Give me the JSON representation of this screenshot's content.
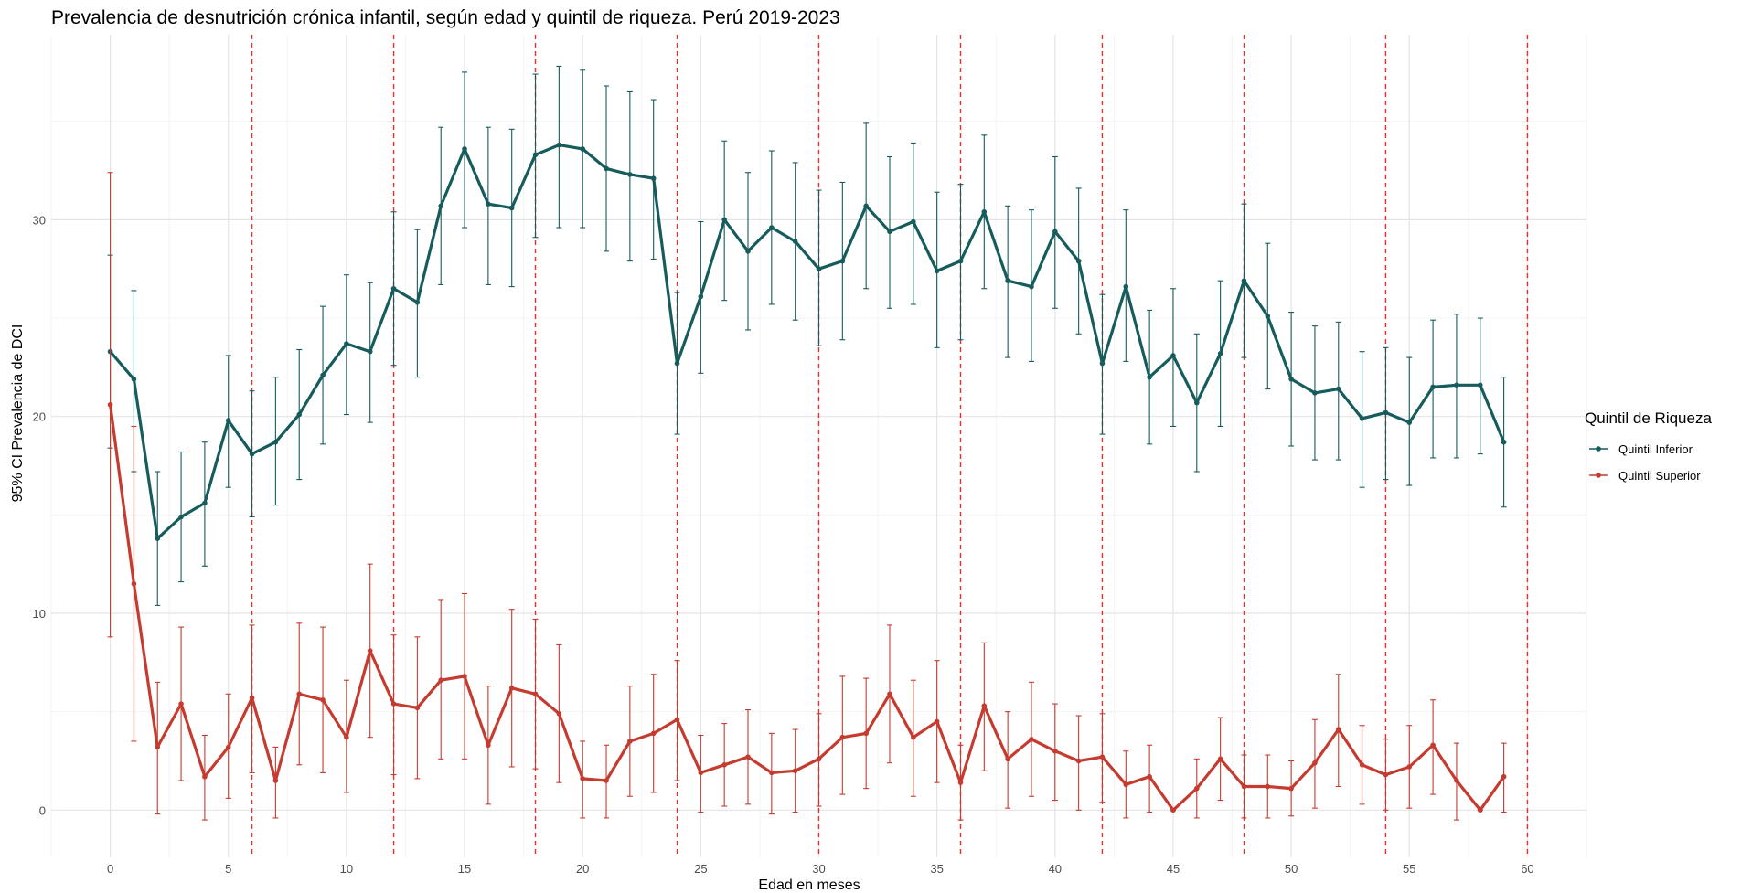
{
  "chart_data": {
    "type": "line",
    "title": "Prevalencia de desnutrición crónica infantil, según edad y quintil de riqueza. Perú 2019-2023",
    "xlabel": "Edad en meses",
    "ylabel": "95% CI Prevalencia de DCI",
    "xlim": [
      -2.5,
      62.5
    ],
    "ylim": [
      -2.4,
      39.4
    ],
    "x_ticks": [
      0,
      5,
      10,
      15,
      20,
      25,
      30,
      35,
      40,
      45,
      50,
      55,
      60
    ],
    "y_ticks": [
      0,
      10,
      20,
      30
    ],
    "grid": true,
    "reference_lines_x": [
      6,
      12,
      18,
      24,
      30,
      36,
      42,
      48,
      54,
      60
    ],
    "reference_line_color": "#e8302a",
    "legend": {
      "title": "Quintil de Riqueza",
      "position": "right"
    },
    "x": [
      0,
      1,
      2,
      3,
      4,
      5,
      6,
      7,
      8,
      9,
      10,
      11,
      12,
      13,
      14,
      15,
      16,
      17,
      18,
      19,
      20,
      21,
      22,
      23,
      24,
      25,
      26,
      27,
      28,
      29,
      30,
      31,
      32,
      33,
      34,
      35,
      36,
      37,
      38,
      39,
      40,
      41,
      42,
      43,
      44,
      45,
      46,
      47,
      48,
      49,
      50,
      51,
      52,
      53,
      54,
      55,
      56,
      57,
      58,
      59
    ],
    "series": [
      {
        "name": "Quintil Inferior",
        "color": "#175c5c",
        "values": [
          23.3,
          21.9,
          13.8,
          14.9,
          15.6,
          19.8,
          18.1,
          18.7,
          20.1,
          22.1,
          23.7,
          23.3,
          26.5,
          25.8,
          30.7,
          33.6,
          30.8,
          30.6,
          33.3,
          33.8,
          33.6,
          32.6,
          32.3,
          32.1,
          22.7,
          26.1,
          30.0,
          28.4,
          29.6,
          28.9,
          27.5,
          27.9,
          30.7,
          29.4,
          29.9,
          27.4,
          27.9,
          30.4,
          26.9,
          26.6,
          29.4,
          27.9,
          22.7,
          26.6,
          22.0,
          23.1,
          20.7,
          23.2,
          26.9,
          25.1,
          21.9,
          21.2,
          21.4,
          19.9,
          20.2,
          19.7,
          21.5,
          21.6,
          21.6,
          18.7
        ],
        "lower": [
          18.4,
          17.2,
          10.4,
          11.6,
          12.4,
          16.4,
          14.9,
          15.5,
          16.8,
          18.6,
          20.1,
          19.7,
          22.6,
          22.0,
          26.7,
          29.6,
          26.7,
          26.6,
          29.1,
          29.6,
          29.6,
          28.4,
          27.9,
          28.0,
          19.1,
          22.2,
          25.9,
          24.4,
          25.7,
          24.9,
          23.6,
          23.9,
          26.5,
          25.5,
          25.7,
          23.5,
          23.9,
          26.5,
          23.0,
          22.8,
          25.5,
          24.2,
          19.1,
          22.8,
          18.6,
          19.5,
          17.2,
          19.5,
          23.0,
          21.4,
          18.5,
          17.8,
          17.8,
          16.4,
          16.8,
          16.5,
          17.9,
          17.9,
          18.1,
          15.4
        ],
        "upper": [
          28.2,
          26.4,
          17.2,
          18.2,
          18.7,
          23.1,
          21.3,
          22.0,
          23.4,
          25.6,
          27.2,
          26.8,
          30.4,
          29.5,
          34.7,
          37.5,
          34.7,
          34.6,
          37.4,
          37.8,
          37.6,
          36.8,
          36.5,
          36.1,
          26.3,
          29.9,
          34.0,
          32.4,
          33.5,
          32.9,
          31.5,
          31.9,
          34.9,
          33.2,
          33.9,
          31.4,
          31.8,
          34.3,
          30.7,
          30.5,
          33.2,
          31.6,
          26.2,
          30.5,
          25.4,
          26.5,
          24.2,
          26.9,
          30.8,
          28.8,
          25.3,
          24.6,
          24.8,
          23.3,
          23.5,
          23.0,
          24.9,
          25.2,
          25.0,
          22.0
        ]
      },
      {
        "name": "Quintil Superior",
        "color": "#c53b2f",
        "values": [
          20.6,
          11.5,
          3.2,
          5.4,
          1.7,
          3.2,
          5.7,
          1.5,
          5.9,
          5.6,
          3.7,
          8.1,
          5.4,
          5.2,
          6.6,
          6.8,
          3.3,
          6.2,
          5.9,
          4.9,
          1.6,
          1.5,
          3.5,
          3.9,
          4.6,
          1.9,
          2.3,
          2.7,
          1.9,
          2.0,
          2.6,
          3.7,
          3.9,
          5.9,
          3.7,
          4.5,
          1.4,
          5.3,
          2.6,
          3.6,
          3.0,
          2.5,
          2.7,
          1.3,
          1.7,
          0.0,
          1.1,
          2.6,
          1.2,
          1.2,
          1.1,
          2.4,
          4.1,
          2.3,
          1.8,
          2.2,
          3.3,
          1.5,
          0.0,
          1.7
        ],
        "lower": [
          8.8,
          3.5,
          -0.2,
          1.5,
          -0.5,
          0.6,
          1.9,
          -0.4,
          2.3,
          1.9,
          0.9,
          3.7,
          1.8,
          1.6,
          2.6,
          2.6,
          0.3,
          2.2,
          2.1,
          1.4,
          -0.4,
          -0.4,
          0.7,
          0.9,
          1.5,
          -0.1,
          0.2,
          0.3,
          -0.2,
          -0.1,
          0.2,
          0.8,
          1.1,
          2.4,
          0.7,
          1.4,
          -0.5,
          2.0,
          0.1,
          0.7,
          0.5,
          0.0,
          0.4,
          -0.4,
          -0.1,
          0.0,
          -0.4,
          0.5,
          -0.4,
          -0.4,
          -0.3,
          0.1,
          1.2,
          0.3,
          0.0,
          0.1,
          0.8,
          -0.5,
          0.0,
          -0.1
        ],
        "upper": [
          32.4,
          19.5,
          6.5,
          9.3,
          3.8,
          5.9,
          9.4,
          3.2,
          9.5,
          9.3,
          6.6,
          12.5,
          8.9,
          8.8,
          10.7,
          11.0,
          6.3,
          10.2,
          9.7,
          8.4,
          3.5,
          3.3,
          6.3,
          6.9,
          7.6,
          3.8,
          4.4,
          5.1,
          3.9,
          4.1,
          4.9,
          6.8,
          6.7,
          9.4,
          6.6,
          7.6,
          3.3,
          8.5,
          5.0,
          6.5,
          5.4,
          4.8,
          4.9,
          3.0,
          3.3,
          0.0,
          2.6,
          4.7,
          2.8,
          2.8,
          2.5,
          4.6,
          6.9,
          4.3,
          3.6,
          4.3,
          5.6,
          3.4,
          0.0,
          3.4
        ]
      }
    ]
  }
}
